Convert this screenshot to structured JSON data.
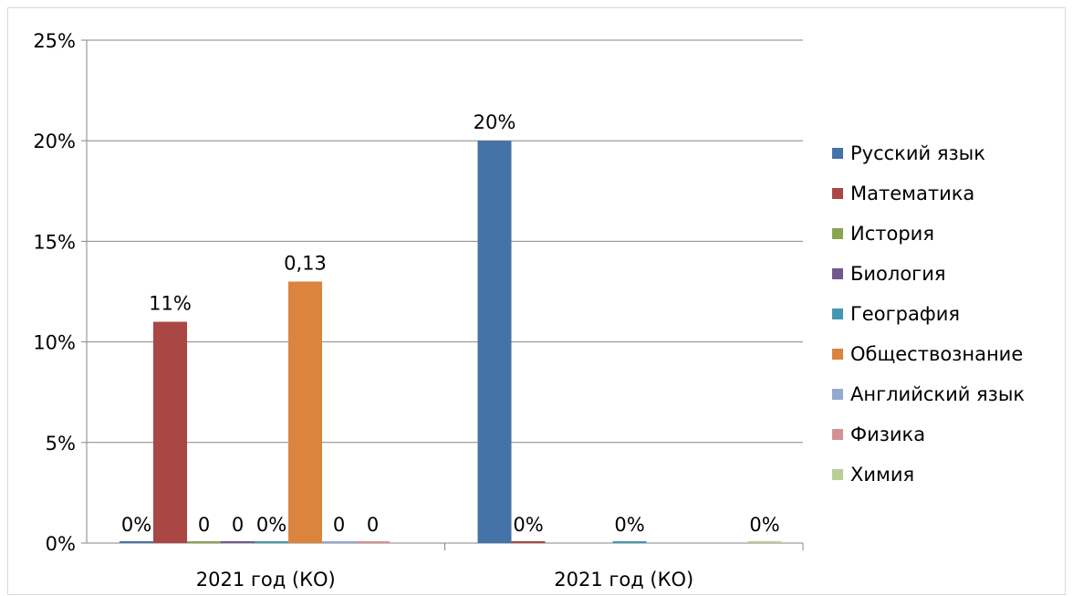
{
  "chart_data": {
    "type": "bar",
    "title": "",
    "xlabel": "",
    "ylabel": "",
    "ylim": [
      0,
      25
    ],
    "yticks": [
      "0%",
      "5%",
      "10%",
      "15%",
      "20%",
      "25%"
    ],
    "ytick_values": [
      0,
      5,
      10,
      15,
      20,
      25
    ],
    "grid": true,
    "legend_position": "right",
    "categories": [
      "2021 год (КО)",
      "2021 год (КО)"
    ],
    "series": [
      {
        "name": "Русский язык",
        "color": "#4572a7",
        "values": [
          0,
          20
        ],
        "labels": [
          "0%",
          "20%"
        ]
      },
      {
        "name": "Математика",
        "color": "#aa4643",
        "values": [
          11,
          0
        ],
        "labels": [
          "11%",
          "0%"
        ]
      },
      {
        "name": "История",
        "color": "#89a54e",
        "values": [
          0,
          null
        ],
        "labels": [
          "0",
          ""
        ]
      },
      {
        "name": "Биология",
        "color": "#71588f",
        "values": [
          0,
          null
        ],
        "labels": [
          "0",
          ""
        ]
      },
      {
        "name": "География",
        "color": "#4198af",
        "values": [
          0,
          0
        ],
        "labels": [
          "0%",
          "0%"
        ]
      },
      {
        "name": "Обществознание",
        "color": "#db843d",
        "values": [
          13,
          null
        ],
        "labels": [
          "0,13",
          ""
        ]
      },
      {
        "name": "Английский язык",
        "color": "#93a9cf",
        "values": [
          0,
          null
        ],
        "labels": [
          "0",
          ""
        ]
      },
      {
        "name": "Физика",
        "color": "#d19392",
        "values": [
          0,
          null
        ],
        "labels": [
          "0",
          ""
        ]
      },
      {
        "name": "Химия",
        "color": "#b9cd96",
        "values": [
          null,
          0
        ],
        "labels": [
          "",
          "0%"
        ]
      }
    ]
  }
}
